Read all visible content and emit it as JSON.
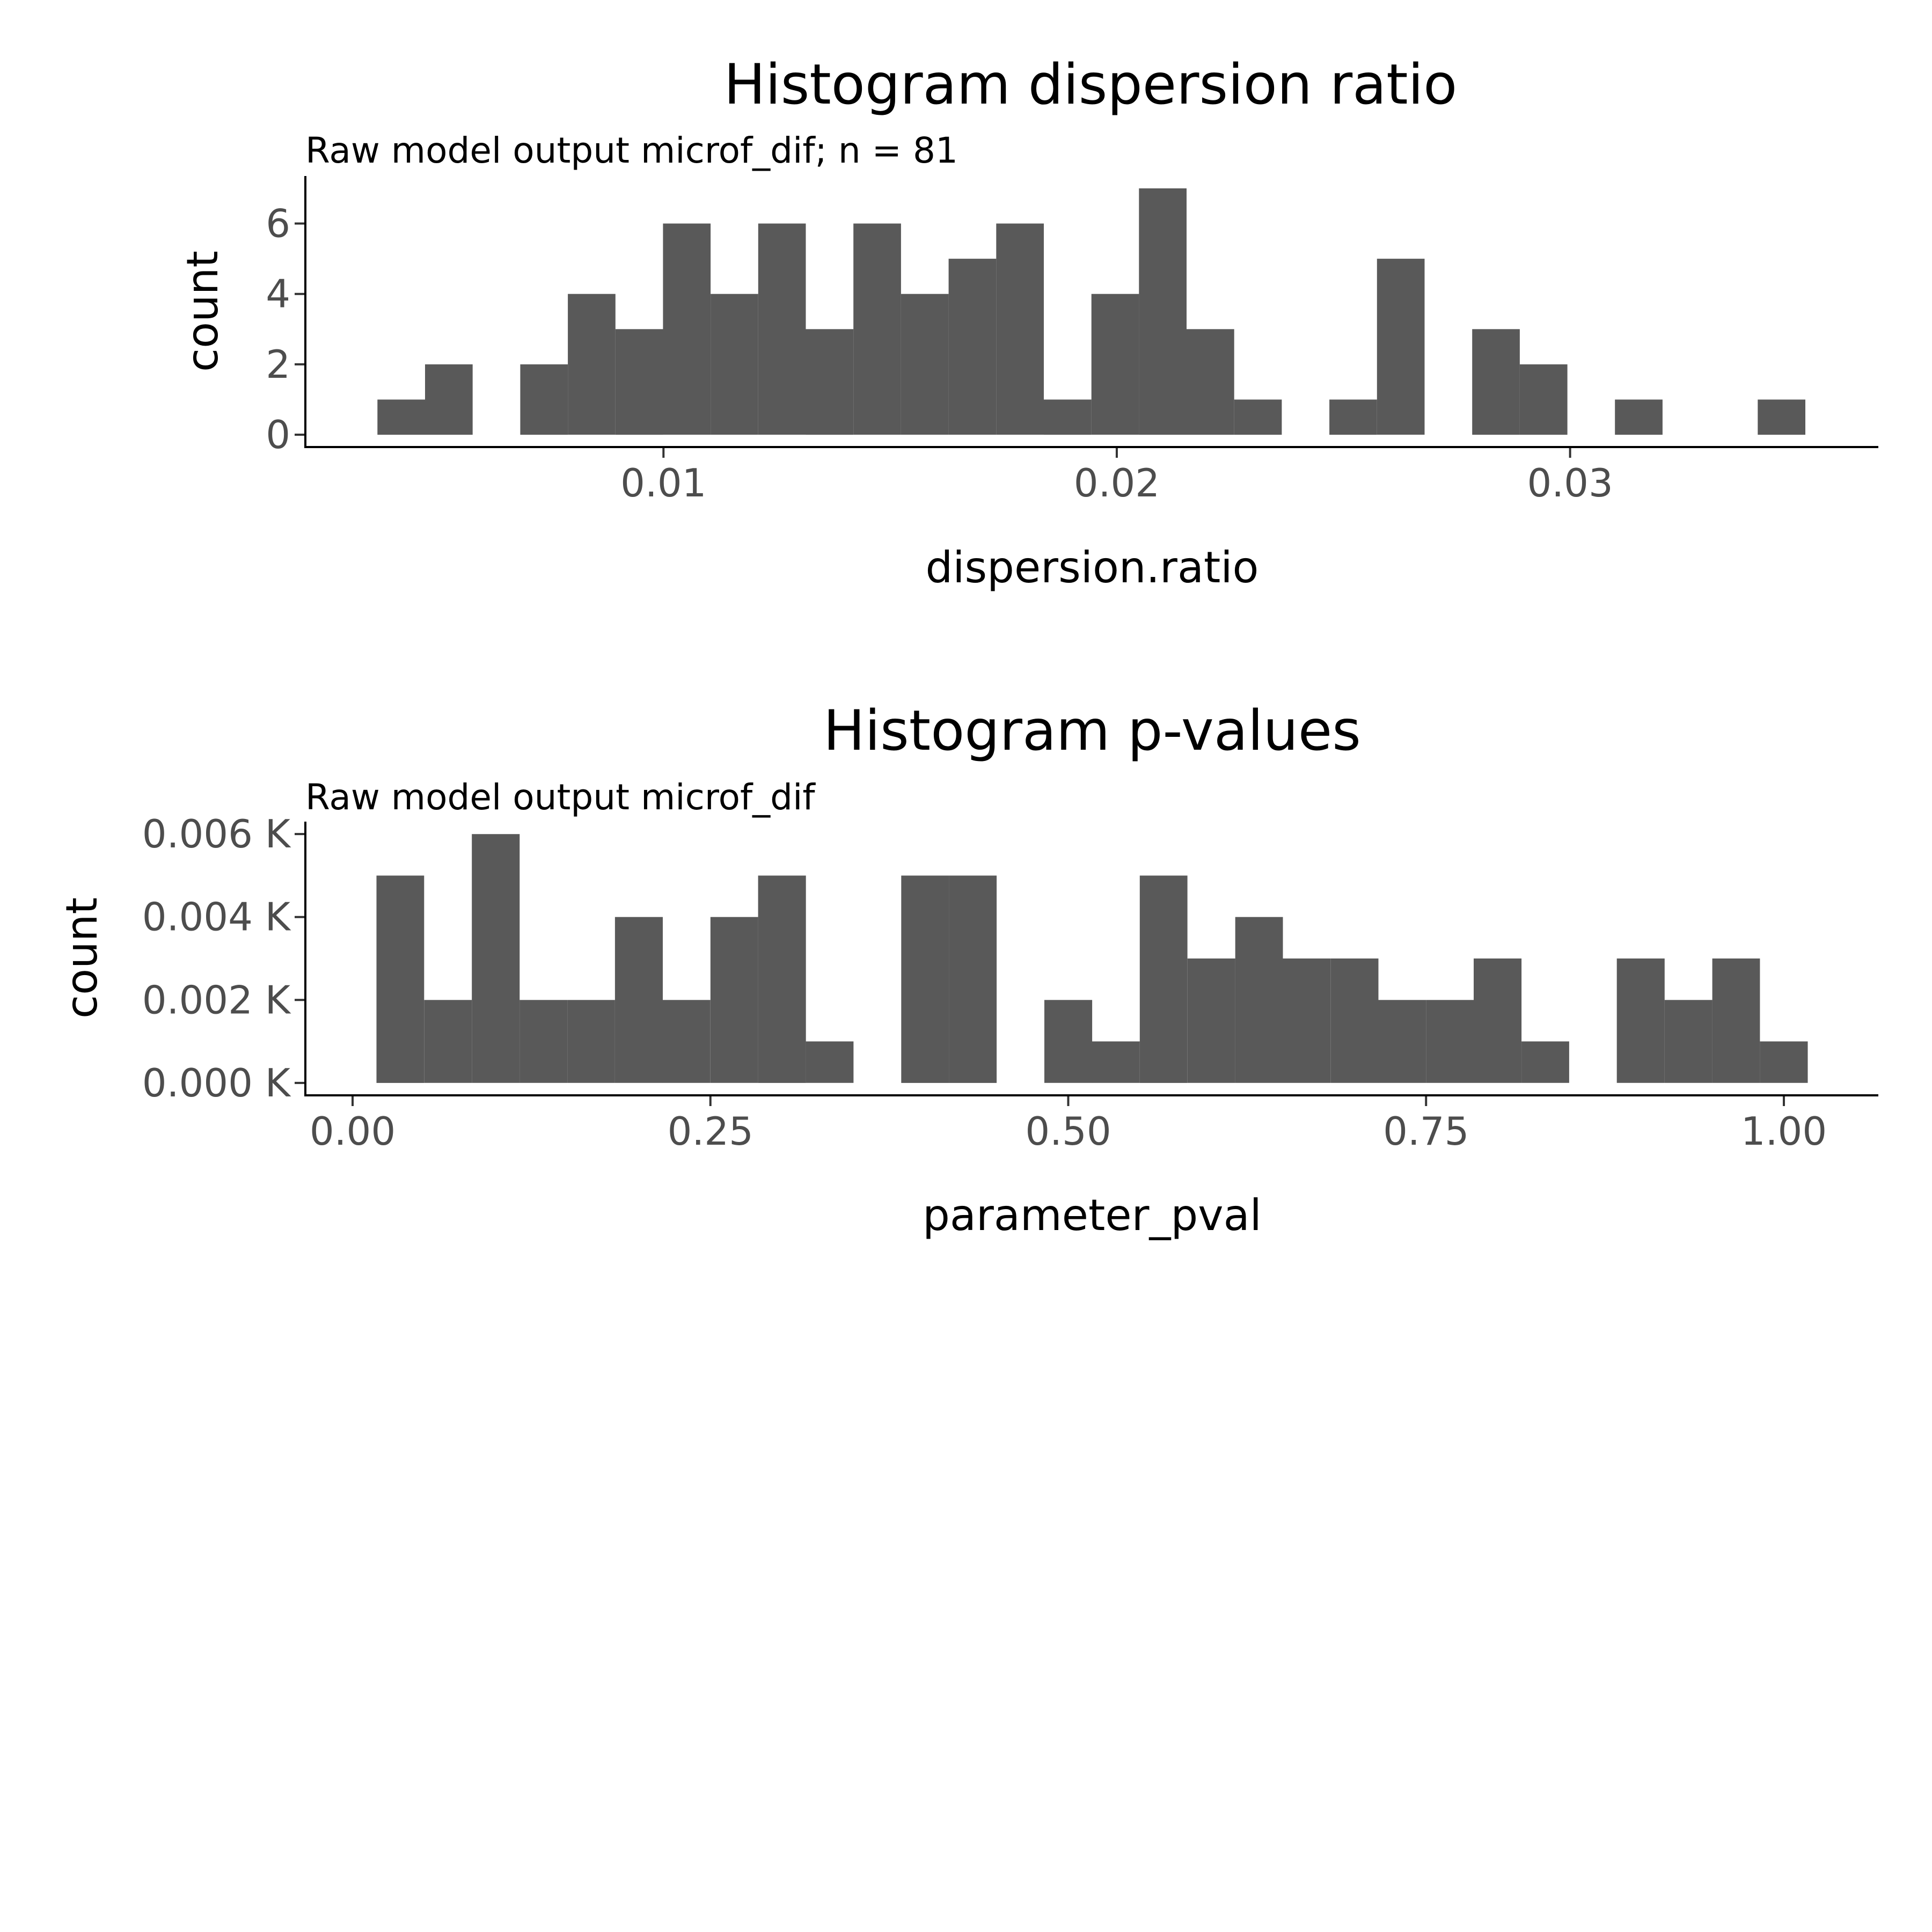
{
  "chart_data": [
    {
      "type": "bar",
      "title": "Histogram dispersion ratio",
      "subtitle": "Raw model output microf_dif; n = 81",
      "xlabel": "dispersion.ratio",
      "ylabel": "count",
      "bin_width": 0.00105,
      "bins": [
        {
          "x0": 0.00369,
          "x1": 0.00474,
          "count": 1
        },
        {
          "x0": 0.00474,
          "x1": 0.00579,
          "count": 2
        },
        {
          "x0": 0.00579,
          "x1": 0.00684,
          "count": 0
        },
        {
          "x0": 0.00684,
          "x1": 0.00789,
          "count": 2
        },
        {
          "x0": 0.00789,
          "x1": 0.00894,
          "count": 4
        },
        {
          "x0": 0.00894,
          "x1": 0.00999,
          "count": 3
        },
        {
          "x0": 0.00999,
          "x1": 0.01104,
          "count": 6
        },
        {
          "x0": 0.01104,
          "x1": 0.01209,
          "count": 4
        },
        {
          "x0": 0.01209,
          "x1": 0.01314,
          "count": 6
        },
        {
          "x0": 0.01314,
          "x1": 0.01419,
          "count": 3
        },
        {
          "x0": 0.01419,
          "x1": 0.01524,
          "count": 6
        },
        {
          "x0": 0.01524,
          "x1": 0.01629,
          "count": 4
        },
        {
          "x0": 0.01629,
          "x1": 0.01734,
          "count": 5
        },
        {
          "x0": 0.01734,
          "x1": 0.01839,
          "count": 6
        },
        {
          "x0": 0.01839,
          "x1": 0.01944,
          "count": 1
        },
        {
          "x0": 0.01944,
          "x1": 0.02049,
          "count": 4
        },
        {
          "x0": 0.02049,
          "x1": 0.02154,
          "count": 7
        },
        {
          "x0": 0.02154,
          "x1": 0.02259,
          "count": 3
        },
        {
          "x0": 0.02259,
          "x1": 0.02364,
          "count": 1
        },
        {
          "x0": 0.02364,
          "x1": 0.02469,
          "count": 0
        },
        {
          "x0": 0.02469,
          "x1": 0.02574,
          "count": 1
        },
        {
          "x0": 0.02574,
          "x1": 0.02679,
          "count": 5
        },
        {
          "x0": 0.02679,
          "x1": 0.02784,
          "count": 0
        },
        {
          "x0": 0.02784,
          "x1": 0.02889,
          "count": 3
        },
        {
          "x0": 0.02889,
          "x1": 0.02994,
          "count": 2
        },
        {
          "x0": 0.02994,
          "x1": 0.03099,
          "count": 0
        },
        {
          "x0": 0.03099,
          "x1": 0.03204,
          "count": 1
        },
        {
          "x0": 0.03204,
          "x1": 0.03309,
          "count": 0
        },
        {
          "x0": 0.03309,
          "x1": 0.03414,
          "count": 0
        },
        {
          "x0": 0.03414,
          "x1": 0.03519,
          "count": 1
        }
      ],
      "xlim": [
        0.0021,
        0.0368
      ],
      "ylim": [
        -0.35,
        7.35
      ],
      "x_ticks": [
        {
          "value": 0.01,
          "label": "0.01"
        },
        {
          "value": 0.02,
          "label": "0.02"
        },
        {
          "value": 0.03,
          "label": "0.03"
        }
      ],
      "y_ticks": [
        {
          "value": 0,
          "label": "0"
        },
        {
          "value": 2,
          "label": "2"
        },
        {
          "value": 4,
          "label": "4"
        },
        {
          "value": 6,
          "label": "6"
        }
      ],
      "bar_color": "#595959",
      "grid": false
    },
    {
      "type": "bar",
      "title": "Histogram p-values",
      "subtitle": "Raw model output microf_dif",
      "xlabel": "parameter_pval",
      "ylabel": "count",
      "bin_width": 0.0333,
      "bins": [
        {
          "x0": 0.0167,
          "x1": 0.05,
          "count": 0.005
        },
        {
          "x0": 0.05,
          "x1": 0.0833,
          "count": 0.002
        },
        {
          "x0": 0.0833,
          "x1": 0.1167,
          "count": 0.006
        },
        {
          "x0": 0.1167,
          "x1": 0.15,
          "count": 0.002
        },
        {
          "x0": 0.15,
          "x1": 0.1833,
          "count": 0.002
        },
        {
          "x0": 0.1833,
          "x1": 0.2167,
          "count": 0.004
        },
        {
          "x0": 0.2167,
          "x1": 0.25,
          "count": 0.002
        },
        {
          "x0": 0.25,
          "x1": 0.2833,
          "count": 0.004
        },
        {
          "x0": 0.2833,
          "x1": 0.3167,
          "count": 0.005
        },
        {
          "x0": 0.3167,
          "x1": 0.35,
          "count": 0.001
        },
        {
          "x0": 0.35,
          "x1": 0.3833,
          "count": 0
        },
        {
          "x0": 0.3833,
          "x1": 0.4167,
          "count": 0.005
        },
        {
          "x0": 0.4167,
          "x1": 0.45,
          "count": 0.005
        },
        {
          "x0": 0.45,
          "x1": 0.4833,
          "count": 0
        },
        {
          "x0": 0.4833,
          "x1": 0.5167,
          "count": 0.002
        },
        {
          "x0": 0.5167,
          "x1": 0.55,
          "count": 0.001
        },
        {
          "x0": 0.55,
          "x1": 0.5833,
          "count": 0.005
        },
        {
          "x0": 0.5833,
          "x1": 0.6167,
          "count": 0.003
        },
        {
          "x0": 0.6167,
          "x1": 0.65,
          "count": 0.004
        },
        {
          "x0": 0.65,
          "x1": 0.6833,
          "count": 0.003
        },
        {
          "x0": 0.6833,
          "x1": 0.7167,
          "count": 0.003
        },
        {
          "x0": 0.7167,
          "x1": 0.75,
          "count": 0.002
        },
        {
          "x0": 0.75,
          "x1": 0.7833,
          "count": 0.002
        },
        {
          "x0": 0.7833,
          "x1": 0.8167,
          "count": 0.003
        },
        {
          "x0": 0.8167,
          "x1": 0.85,
          "count": 0.001
        },
        {
          "x0": 0.85,
          "x1": 0.8833,
          "count": 0
        },
        {
          "x0": 0.8833,
          "x1": 0.9167,
          "count": 0.003
        },
        {
          "x0": 0.9167,
          "x1": 0.95,
          "count": 0.002
        },
        {
          "x0": 0.95,
          "x1": 0.9833,
          "count": 0.003
        },
        {
          "x0": 0.9833,
          "x1": 1.0167,
          "count": 0.001
        }
      ],
      "xlim": [
        -0.033,
        1.066
      ],
      "ylim": [
        -0.0003,
        0.0063
      ],
      "x_ticks": [
        {
          "value": 0,
          "label": "0.00"
        },
        {
          "value": 0.25,
          "label": "0.25"
        },
        {
          "value": 0.5,
          "label": "0.50"
        },
        {
          "value": 0.75,
          "label": "0.75"
        },
        {
          "value": 1,
          "label": "1.00"
        }
      ],
      "y_ticks": [
        {
          "value": 0,
          "label": "0.000 K"
        },
        {
          "value": 0.002,
          "label": "0.002 K"
        },
        {
          "value": 0.004,
          "label": "0.004 K"
        },
        {
          "value": 0.006,
          "label": "0.006 K"
        }
      ],
      "bar_color": "#595959",
      "grid": false
    }
  ]
}
